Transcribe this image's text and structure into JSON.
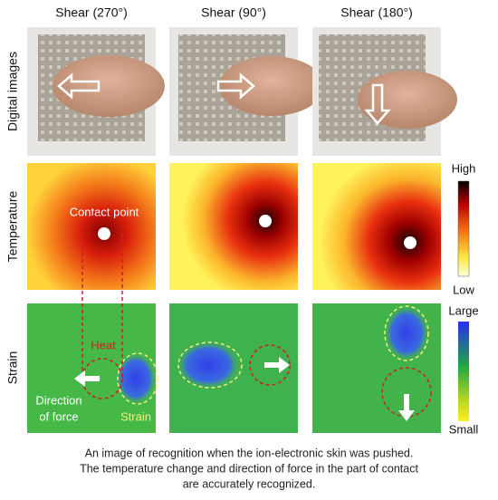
{
  "columns": [
    "Shear (270°)",
    "Shear (90°)",
    "Shear (180°)"
  ],
  "rows": [
    "Digital images",
    "Temperature",
    "Strain"
  ],
  "temperature_scale": {
    "high": "High",
    "low": "Low"
  },
  "strain_scale": {
    "high": "Large",
    "low": "Small"
  },
  "annotations": {
    "contact_point": "Contact point",
    "heat": "Heat",
    "strain": "Strain",
    "direction": [
      "Direction",
      "of force"
    ]
  },
  "caption": [
    "An image of recognition when the ion-electronic skin was pushed.",
    "The temperature change and direction of force in the part of contact",
    "are accurately recognized."
  ]
}
